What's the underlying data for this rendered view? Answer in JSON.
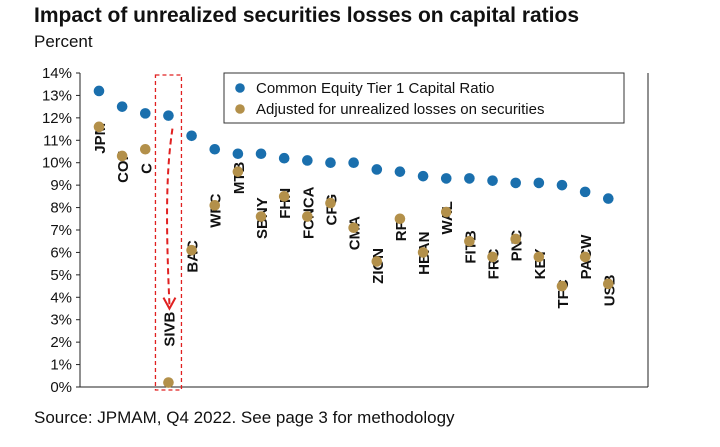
{
  "title": "Impact of unrealized securities losses on capital ratios",
  "subtitle": "Percent",
  "source": "Source: JPMAM, Q4 2022. See page 3 for methodology",
  "chart_data": {
    "type": "scatter",
    "title": "Impact of unrealized securities losses on capital ratios",
    "ylabel": "Percent",
    "xlabel": "",
    "ylim": [
      0,
      14
    ],
    "yticks": [
      "0%",
      "1%",
      "2%",
      "3%",
      "4%",
      "5%",
      "6%",
      "7%",
      "8%",
      "9%",
      "10%",
      "11%",
      "12%",
      "13%",
      "14%"
    ],
    "categories": [
      "JPM",
      "COF",
      "C",
      "SIVB",
      "BAC",
      "WFC",
      "MTB",
      "SBNY",
      "FHN",
      "FCNCA",
      "CFG",
      "CMA",
      "ZION",
      "RF",
      "HBAN",
      "WAL",
      "FITB",
      "FRC",
      "PNC",
      "KEY",
      "TFC",
      "PACW",
      "USB"
    ],
    "series": [
      {
        "name": "Common Equity Tier 1 Capital Ratio",
        "color": "#1a6fad",
        "values": [
          13.2,
          12.5,
          12.2,
          12.1,
          11.2,
          10.6,
          10.4,
          10.4,
          10.2,
          10.1,
          10.0,
          10.0,
          9.7,
          9.6,
          9.4,
          9.3,
          9.3,
          9.2,
          9.1,
          9.1,
          9.0,
          8.7,
          8.4
        ]
      },
      {
        "name": "Adjusted for unrealized losses on securities",
        "color": "#b3904a",
        "values": [
          11.6,
          10.3,
          10.6,
          0.2,
          6.1,
          8.1,
          9.6,
          7.6,
          8.5,
          7.6,
          8.2,
          7.1,
          5.6,
          7.5,
          6.0,
          7.8,
          6.5,
          5.8,
          6.6,
          5.8,
          4.5,
          5.8,
          4.6
        ]
      }
    ],
    "label_y": [
      10.4,
      9.1,
      9.5,
      1.8,
      5.1,
      7.1,
      8.6,
      6.6,
      7.5,
      6.6,
      7.2,
      6.1,
      4.6,
      6.5,
      5.0,
      6.8,
      5.5,
      4.8,
      5.6,
      4.8,
      3.5,
      4.8,
      3.6
    ],
    "highlight": "SIVB",
    "legend_position": "top-right"
  }
}
